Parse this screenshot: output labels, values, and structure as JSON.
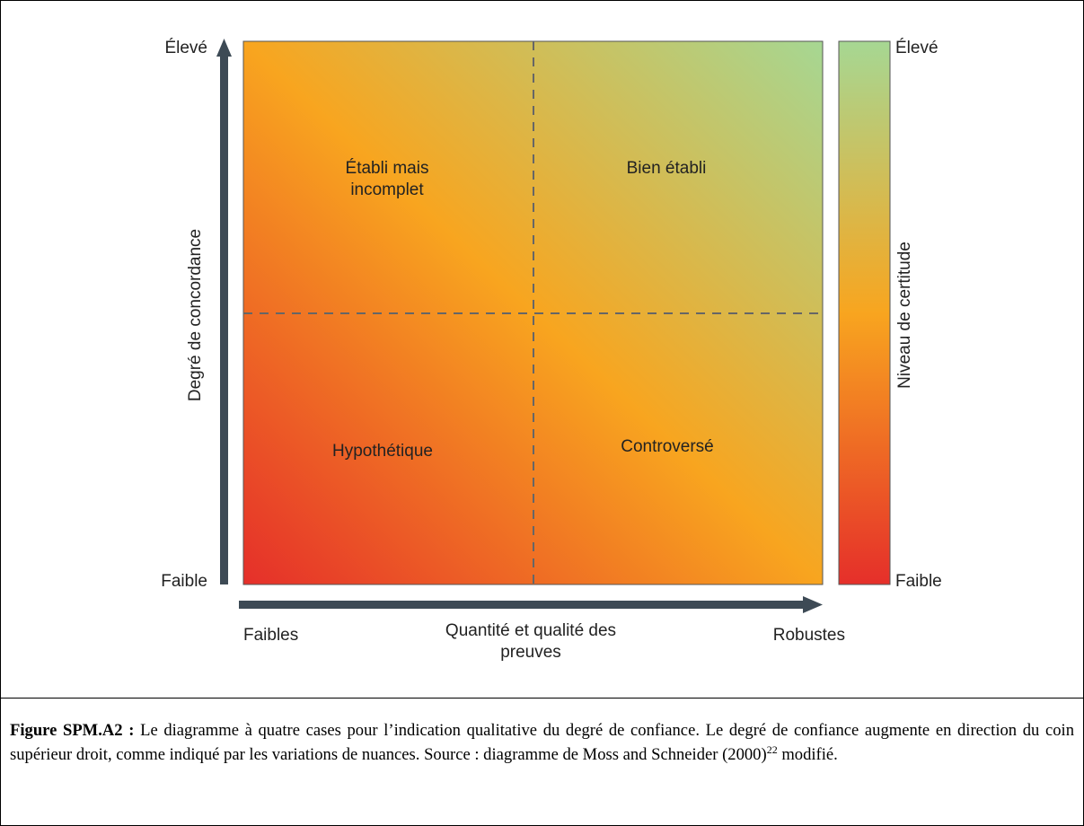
{
  "y_axis": {
    "label": "Degré de concordance",
    "high": "Élevé",
    "low": "Faible"
  },
  "x_axis": {
    "label_lines": [
      "Quantité et qualité des",
      "preuves"
    ],
    "low": "Faibles",
    "high": "Robustes"
  },
  "scale": {
    "label": "Niveau de certitude",
    "high": "Élevé",
    "low": "Faible"
  },
  "quadrants": [
    {
      "lines": [
        "Établi mais",
        "incomplet"
      ]
    },
    {
      "lines": [
        "Bien établi"
      ]
    },
    {
      "lines": [
        "Hypothétique"
      ]
    },
    {
      "lines": [
        "Controversé"
      ]
    }
  ],
  "caption": {
    "label": "Figure SPM.A2 :",
    "text": " Le diagramme à quatre cases pour l’indication qualitative du degré de confiance. Le degré de confiance augmente en direction du coin supérieur droit, comme indiqué par les variations de nuances. Source : diagramme de Moss and Schneider (2000)",
    "superscript": "22",
    "text_end": " modifié."
  }
}
